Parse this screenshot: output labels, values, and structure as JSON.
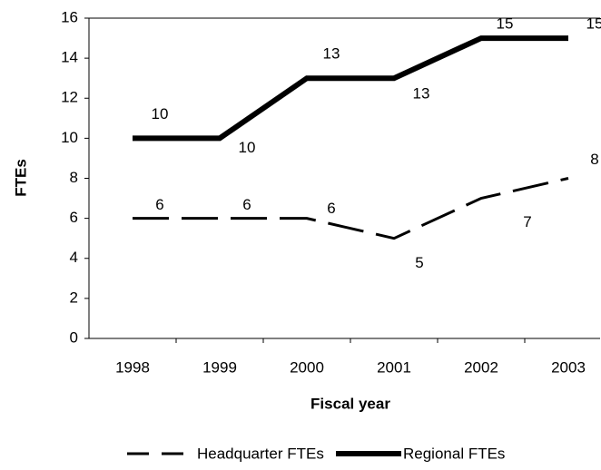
{
  "chart_data": {
    "type": "line",
    "x_label": "Fiscal year",
    "y_label": "FTEs",
    "categories": [
      "1998",
      "1999",
      "2000",
      "2001",
      "2002",
      "2003"
    ],
    "series": [
      {
        "name": "Headquarter FTEs",
        "color": "#000000",
        "style": "dashed",
        "values": [
          6,
          6,
          6,
          5,
          7,
          8
        ]
      },
      {
        "name": "Regional FTEs",
        "color": "#000000",
        "style": "solid",
        "values": [
          10,
          10,
          13,
          13,
          15,
          15
        ]
      }
    ],
    "ylim": [
      0,
      16
    ],
    "yticks": [
      0,
      2,
      4,
      6,
      8,
      10,
      12,
      14,
      16
    ],
    "grid": false,
    "legend": "bottom"
  }
}
